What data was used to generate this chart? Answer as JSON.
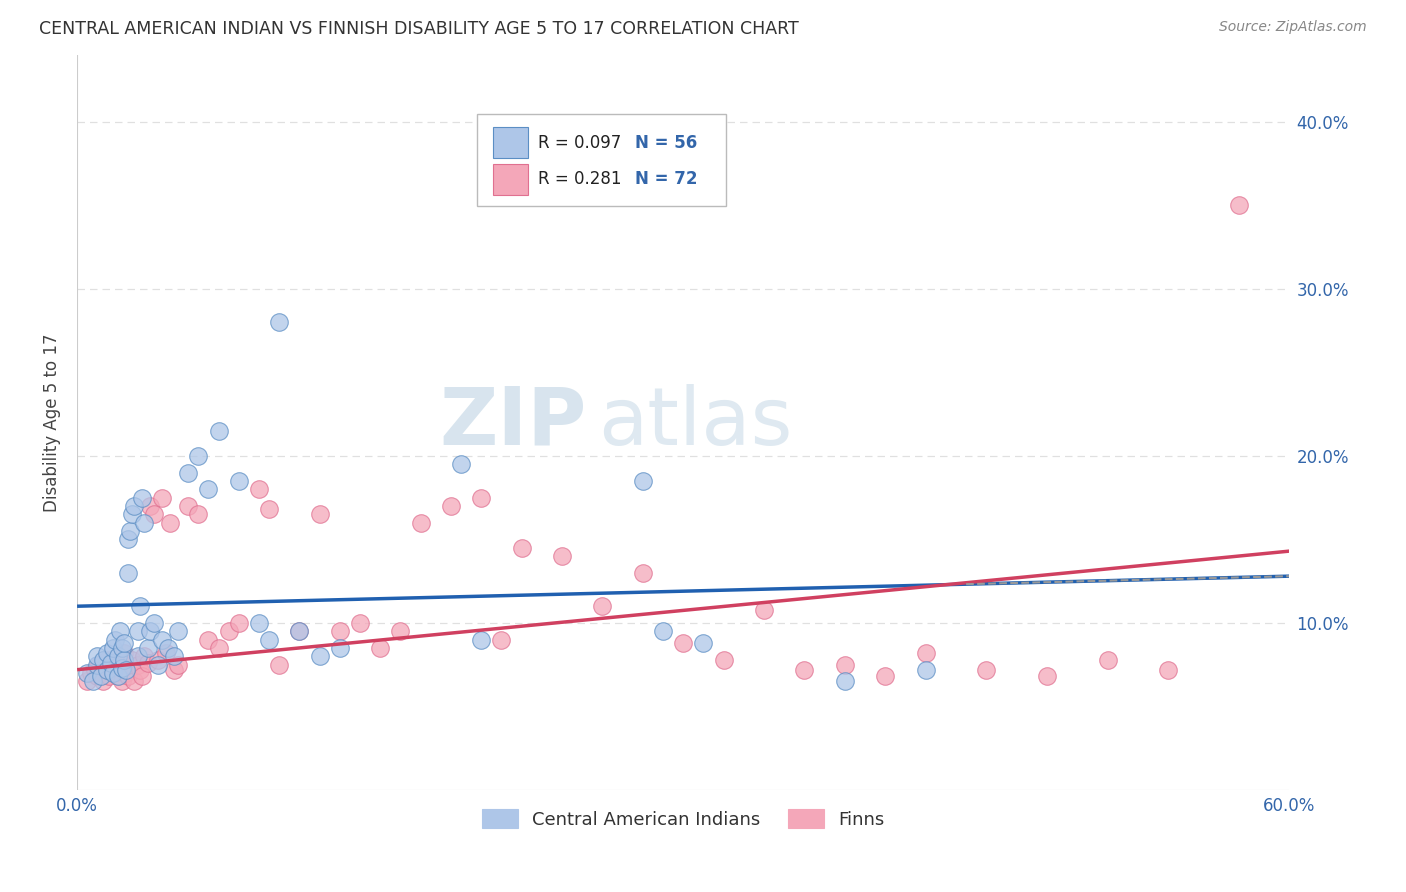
{
  "title": "CENTRAL AMERICAN INDIAN VS FINNISH DISABILITY AGE 5 TO 17 CORRELATION CHART",
  "source": "Source: ZipAtlas.com",
  "ylabel": "Disability Age 5 to 17",
  "xlim": [
    0.0,
    0.6
  ],
  "ylim": [
    0.0,
    0.44
  ],
  "legend_r_blue": "R = 0.097",
  "legend_n_blue": "N = 56",
  "legend_r_pink": "R = 0.281",
  "legend_n_pink": "N = 72",
  "legend_label_blue": "Central American Indians",
  "legend_label_pink": "Finns",
  "color_blue_fill": "#aec6e8",
  "color_pink_fill": "#f4a7b9",
  "color_blue_edge": "#5b8ec4",
  "color_pink_edge": "#e07090",
  "color_blue_line": "#2060b0",
  "color_pink_line": "#d04060",
  "color_title": "#333333",
  "color_source": "#888888",
  "color_axis": "#cccccc",
  "color_grid": "#e0e0e0",
  "color_tick_label": "#3366aa",
  "watermark_zip": "ZIP",
  "watermark_atlas": "atlas",
  "blue_x": [
    0.005,
    0.008,
    0.01,
    0.01,
    0.012,
    0.013,
    0.015,
    0.015,
    0.017,
    0.018,
    0.018,
    0.019,
    0.02,
    0.02,
    0.021,
    0.022,
    0.022,
    0.023,
    0.023,
    0.024,
    0.025,
    0.025,
    0.026,
    0.027,
    0.028,
    0.03,
    0.03,
    0.031,
    0.032,
    0.033,
    0.035,
    0.036,
    0.038,
    0.04,
    0.042,
    0.045,
    0.048,
    0.05,
    0.055,
    0.06,
    0.065,
    0.07,
    0.08,
    0.09,
    0.095,
    0.1,
    0.11,
    0.12,
    0.13,
    0.19,
    0.2,
    0.28,
    0.29,
    0.31,
    0.38,
    0.42
  ],
  "blue_y": [
    0.07,
    0.065,
    0.075,
    0.08,
    0.068,
    0.078,
    0.072,
    0.082,
    0.076,
    0.085,
    0.07,
    0.09,
    0.068,
    0.08,
    0.095,
    0.073,
    0.085,
    0.078,
    0.088,
    0.072,
    0.13,
    0.15,
    0.155,
    0.165,
    0.17,
    0.08,
    0.095,
    0.11,
    0.175,
    0.16,
    0.085,
    0.095,
    0.1,
    0.075,
    0.09,
    0.085,
    0.08,
    0.095,
    0.19,
    0.2,
    0.18,
    0.215,
    0.185,
    0.1,
    0.09,
    0.28,
    0.095,
    0.08,
    0.085,
    0.195,
    0.09,
    0.185,
    0.095,
    0.088,
    0.065,
    0.072
  ],
  "pink_x": [
    0.005,
    0.007,
    0.009,
    0.01,
    0.011,
    0.012,
    0.013,
    0.015,
    0.015,
    0.016,
    0.017,
    0.018,
    0.019,
    0.02,
    0.02,
    0.021,
    0.022,
    0.022,
    0.023,
    0.024,
    0.025,
    0.026,
    0.027,
    0.028,
    0.03,
    0.031,
    0.032,
    0.033,
    0.035,
    0.036,
    0.038,
    0.04,
    0.042,
    0.044,
    0.046,
    0.048,
    0.05,
    0.055,
    0.06,
    0.065,
    0.07,
    0.075,
    0.08,
    0.09,
    0.095,
    0.1,
    0.11,
    0.12,
    0.13,
    0.14,
    0.15,
    0.16,
    0.17,
    0.185,
    0.2,
    0.21,
    0.22,
    0.24,
    0.26,
    0.28,
    0.3,
    0.32,
    0.34,
    0.36,
    0.38,
    0.4,
    0.42,
    0.45,
    0.48,
    0.51,
    0.54,
    0.575
  ],
  "pink_y": [
    0.065,
    0.07,
    0.072,
    0.068,
    0.075,
    0.07,
    0.065,
    0.072,
    0.078,
    0.068,
    0.073,
    0.076,
    0.07,
    0.068,
    0.075,
    0.072,
    0.065,
    0.078,
    0.082,
    0.07,
    0.068,
    0.075,
    0.078,
    0.065,
    0.075,
    0.072,
    0.068,
    0.08,
    0.076,
    0.17,
    0.165,
    0.078,
    0.175,
    0.082,
    0.16,
    0.072,
    0.075,
    0.17,
    0.165,
    0.09,
    0.085,
    0.095,
    0.1,
    0.18,
    0.168,
    0.075,
    0.095,
    0.165,
    0.095,
    0.1,
    0.085,
    0.095,
    0.16,
    0.17,
    0.175,
    0.09,
    0.145,
    0.14,
    0.11,
    0.13,
    0.088,
    0.078,
    0.108,
    0.072,
    0.075,
    0.068,
    0.082,
    0.072,
    0.068,
    0.078,
    0.072,
    0.35
  ]
}
